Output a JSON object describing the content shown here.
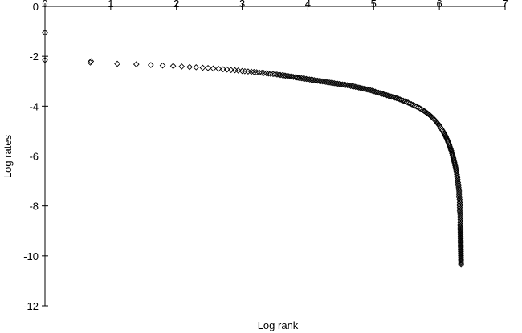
{
  "chart_data": {
    "type": "scatter",
    "title": "",
    "xlabel": "Log rank",
    "ylabel": "Log rates",
    "xlim": [
      0,
      7
    ],
    "ylim": [
      -12,
      0
    ],
    "x_ticks": [
      "0",
      "1",
      "2",
      "3",
      "4",
      "5",
      "6",
      "7"
    ],
    "y_ticks": [
      "0",
      "-2",
      "-4",
      "-6",
      "-8",
      "-10",
      "-12"
    ],
    "x_axis_position": "top",
    "grid": false,
    "legend": "none",
    "marker": "diamond-outline",
    "marker_color": "#000000",
    "series": [
      {
        "points": [
          [
            0,
            -1.05
          ],
          [
            0,
            -2.15
          ],
          [
            0.69,
            -2.25
          ],
          [
            0.7,
            -2.2
          ],
          [
            1.1,
            -2.3
          ],
          [
            1.39,
            -2.32
          ],
          [
            1.61,
            -2.35
          ],
          [
            1.79,
            -2.37
          ],
          [
            1.95,
            -2.39
          ],
          [
            2.08,
            -2.41
          ],
          [
            2.2,
            -2.43
          ],
          [
            2.3,
            -2.44
          ],
          [
            2.4,
            -2.46
          ],
          [
            2.48,
            -2.47
          ],
          [
            2.56,
            -2.49
          ],
          [
            2.64,
            -2.5
          ],
          [
            2.71,
            -2.52
          ],
          [
            2.77,
            -2.53
          ],
          [
            2.83,
            -2.55
          ],
          [
            2.89,
            -2.56
          ],
          [
            2.94,
            -2.57
          ],
          [
            3.0,
            -2.59
          ],
          [
            3.04,
            -2.6
          ],
          [
            3.09,
            -2.61
          ],
          [
            3.14,
            -2.62
          ],
          [
            3.18,
            -2.63
          ],
          [
            3.22,
            -2.64
          ],
          [
            3.26,
            -2.65
          ],
          [
            3.3,
            -2.66
          ],
          [
            3.33,
            -2.67
          ],
          [
            3.37,
            -2.68
          ],
          [
            3.4,
            -2.69
          ],
          [
            3.43,
            -2.7
          ],
          [
            3.47,
            -2.71
          ],
          [
            3.5,
            -2.72
          ],
          [
            3.53,
            -2.73
          ],
          [
            3.56,
            -2.74
          ],
          [
            3.58,
            -2.75
          ],
          [
            3.61,
            -2.76
          ],
          [
            3.64,
            -2.77
          ],
          [
            3.66,
            -2.78
          ],
          [
            3.69,
            -2.79
          ],
          [
            3.71,
            -2.8
          ],
          [
            3.74,
            -2.81
          ],
          [
            3.76,
            -2.82
          ],
          [
            3.78,
            -2.83
          ],
          [
            3.81,
            -2.84
          ],
          [
            3.83,
            -2.85
          ],
          [
            3.85,
            -2.86
          ],
          [
            3.87,
            -2.87
          ],
          [
            3.9,
            -2.88
          ],
          [
            3.95,
            -2.9
          ],
          [
            4.0,
            -2.92
          ],
          [
            4.05,
            -2.94
          ],
          [
            4.1,
            -2.96
          ],
          [
            4.15,
            -2.98
          ],
          [
            4.2,
            -3.0
          ],
          [
            4.25,
            -3.02
          ],
          [
            4.3,
            -3.04
          ],
          [
            4.35,
            -3.06
          ],
          [
            4.4,
            -3.08
          ],
          [
            4.45,
            -3.1
          ],
          [
            4.5,
            -3.12
          ],
          [
            4.55,
            -3.14
          ],
          [
            4.6,
            -3.16
          ],
          [
            4.65,
            -3.19
          ],
          [
            4.7,
            -3.21
          ],
          [
            4.75,
            -3.24
          ],
          [
            4.8,
            -3.27
          ],
          [
            4.85,
            -3.3
          ],
          [
            4.9,
            -3.33
          ],
          [
            4.95,
            -3.36
          ],
          [
            5.0,
            -3.4
          ],
          [
            5.05,
            -3.44
          ],
          [
            5.1,
            -3.48
          ],
          [
            5.15,
            -3.52
          ],
          [
            5.2,
            -3.56
          ],
          [
            5.25,
            -3.6
          ],
          [
            5.3,
            -3.64
          ],
          [
            5.35,
            -3.68
          ],
          [
            5.4,
            -3.73
          ],
          [
            5.45,
            -3.78
          ],
          [
            5.5,
            -3.83
          ],
          [
            5.55,
            -3.89
          ],
          [
            5.6,
            -3.95
          ],
          [
            5.65,
            -4.01
          ],
          [
            5.7,
            -4.08
          ],
          [
            5.75,
            -4.16
          ],
          [
            5.8,
            -4.25
          ],
          [
            5.85,
            -4.35
          ],
          [
            5.9,
            -4.47
          ],
          [
            5.95,
            -4.61
          ],
          [
            6.0,
            -4.78
          ],
          [
            6.03,
            -4.9
          ],
          [
            6.06,
            -5.03
          ],
          [
            6.09,
            -5.18
          ],
          [
            6.12,
            -5.35
          ],
          [
            6.15,
            -5.55
          ],
          [
            6.18,
            -5.78
          ],
          [
            6.2,
            -5.96
          ],
          [
            6.22,
            -6.16
          ],
          [
            6.24,
            -6.38
          ],
          [
            6.26,
            -6.62
          ],
          [
            6.27,
            -6.8
          ],
          [
            6.28,
            -7.0
          ],
          [
            6.29,
            -7.2
          ],
          [
            6.3,
            -7.4
          ],
          [
            6.3,
            -7.6
          ],
          [
            6.31,
            -7.8
          ],
          [
            6.31,
            -8.0
          ],
          [
            6.31,
            -8.2
          ],
          [
            6.32,
            -8.4
          ],
          [
            6.32,
            -8.6
          ],
          [
            6.32,
            -8.8
          ],
          [
            6.33,
            -10.35
          ]
        ]
      }
    ]
  }
}
